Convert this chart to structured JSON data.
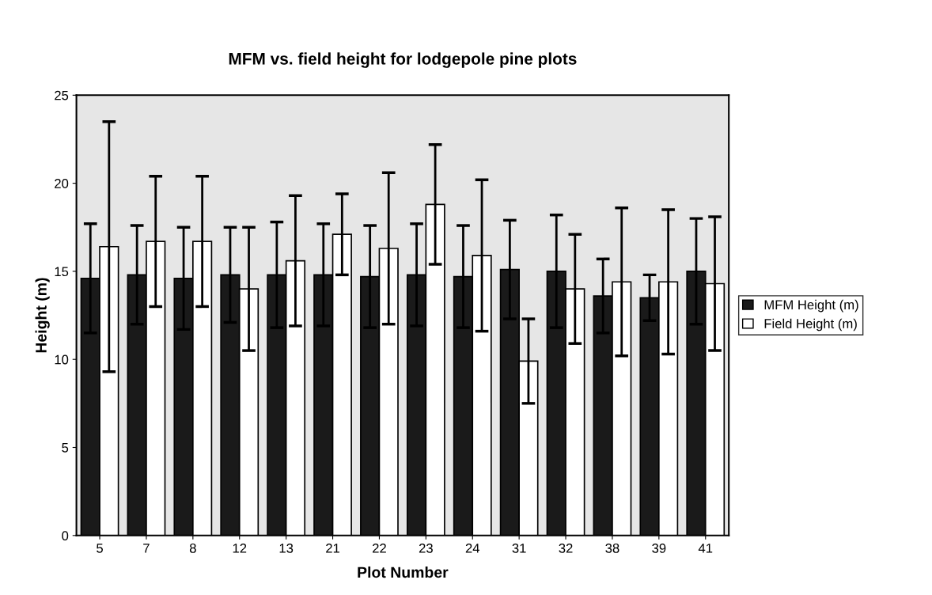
{
  "chart_data": {
    "type": "bar",
    "title": "MFM vs. field height for lodgepole pine plots",
    "xlabel": "Plot Number",
    "ylabel": "Height (m)",
    "categories": [
      "5",
      "7",
      "8",
      "12",
      "13",
      "21",
      "22",
      "23",
      "24",
      "31",
      "32",
      "38",
      "39",
      "41"
    ],
    "series": [
      {
        "name": "MFM Height (m)",
        "color": "#1a1a1a",
        "values": [
          14.6,
          14.8,
          14.6,
          14.8,
          14.8,
          14.8,
          14.7,
          14.8,
          14.7,
          15.1,
          15.0,
          13.6,
          13.5,
          15.0
        ],
        "errors": [
          3.1,
          2.8,
          2.9,
          2.7,
          3.0,
          2.9,
          2.9,
          2.9,
          2.9,
          2.8,
          3.2,
          2.1,
          1.3,
          3.0
        ]
      },
      {
        "name": "Field Height (m)",
        "color": "#ffffff",
        "values": [
          16.4,
          16.7,
          16.7,
          14.0,
          15.6,
          17.1,
          16.3,
          18.8,
          15.9,
          9.9,
          14.0,
          14.4,
          14.4,
          14.3
        ],
        "errors": [
          7.1,
          3.7,
          3.7,
          3.5,
          3.7,
          2.3,
          4.3,
          3.4,
          4.3,
          2.4,
          3.1,
          4.2,
          4.1,
          3.8
        ]
      }
    ],
    "ylim": [
      0,
      25
    ],
    "yticks": [
      0,
      5,
      10,
      15,
      20,
      25
    ],
    "grid": false,
    "legend": "right"
  }
}
